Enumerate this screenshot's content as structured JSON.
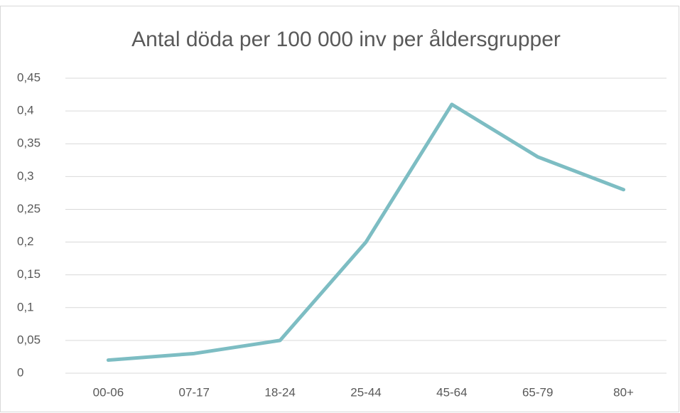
{
  "chart_data": {
    "type": "line",
    "title": "Antal döda per 100 000 inv per åldersgrupper",
    "categories": [
      "00-06",
      "07-17",
      "18-24",
      "25-44",
      "45-64",
      "65-79",
      "80+"
    ],
    "values": [
      0.02,
      0.03,
      0.05,
      0.2,
      0.41,
      0.33,
      0.28
    ],
    "color": "#7dbdc3",
    "ylim": [
      0,
      0.45
    ],
    "yticks": [
      0,
      {
        "value": 0.05,
        "label": "0,05"
      },
      {
        "value": 0.1,
        "label": "0,1"
      },
      {
        "value": 0.15,
        "label": "0,15"
      },
      {
        "value": 0.2,
        "label": "0,2"
      },
      {
        "value": 0.25,
        "label": "0,25"
      },
      {
        "value": 0.3,
        "label": "0,3"
      },
      {
        "value": 0.35,
        "label": "0,35"
      },
      {
        "value": 0.4,
        "label": "0,4"
      },
      {
        "value": 0.45,
        "label": "0,45"
      }
    ],
    "grid": true
  }
}
